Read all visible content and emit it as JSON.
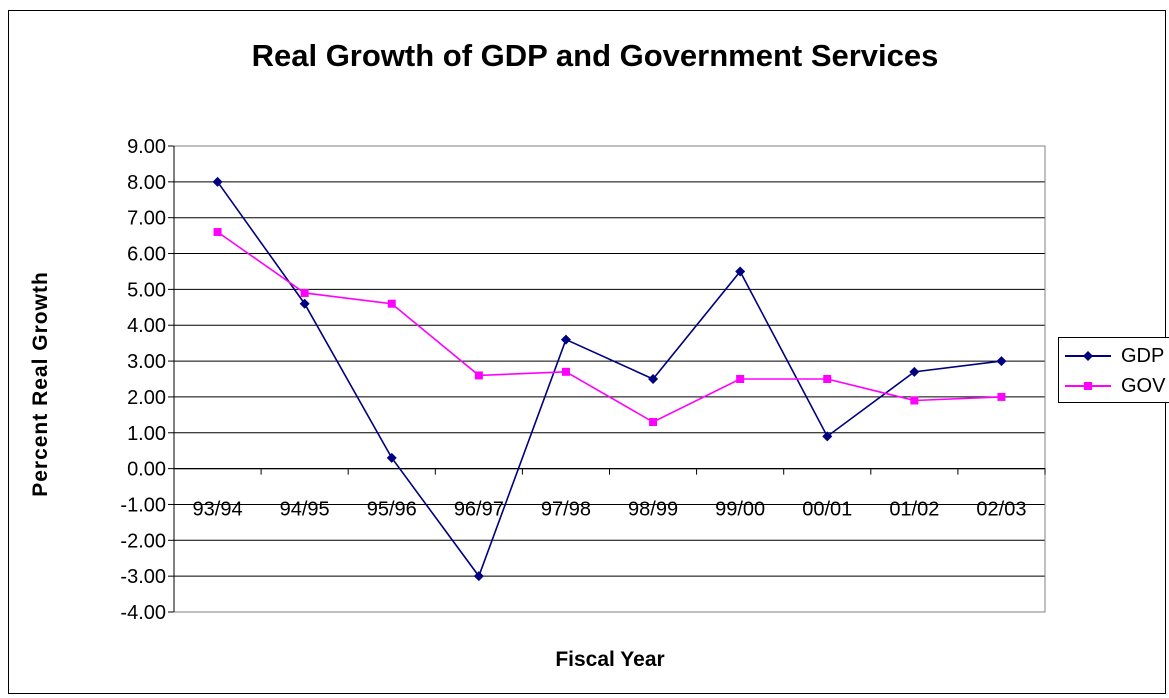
{
  "chart_data": {
    "type": "line",
    "title": "Real Growth of GDP and Government Services",
    "xlabel": "Fiscal Year",
    "ylabel": "Percent Real Growth",
    "categories": [
      "93/94",
      "94/95",
      "95/96",
      "96/97",
      "97/98",
      "98/99",
      "99/00",
      "00/01",
      "01/02",
      "02/03"
    ],
    "ylim": [
      -4,
      9
    ],
    "yticks": [
      "9.00",
      "8.00",
      "7.00",
      "6.00",
      "5.00",
      "4.00",
      "3.00",
      "2.00",
      "1.00",
      "0.00",
      "-1.00",
      "-2.00",
      "-3.00",
      "-4.00"
    ],
    "grid": "horizontal",
    "legend_position": "right",
    "series": [
      {
        "name": "GDP",
        "color": "#000080",
        "marker": "diamond",
        "values": [
          8.0,
          4.6,
          0.3,
          -3.0,
          3.6,
          2.5,
          5.5,
          0.9,
          2.7,
          3.0
        ]
      },
      {
        "name": "GOV",
        "color": "#FF00FF",
        "marker": "square",
        "values": [
          6.6,
          4.9,
          4.6,
          2.6,
          2.7,
          1.3,
          2.5,
          2.5,
          1.9,
          2.0
        ]
      }
    ]
  }
}
